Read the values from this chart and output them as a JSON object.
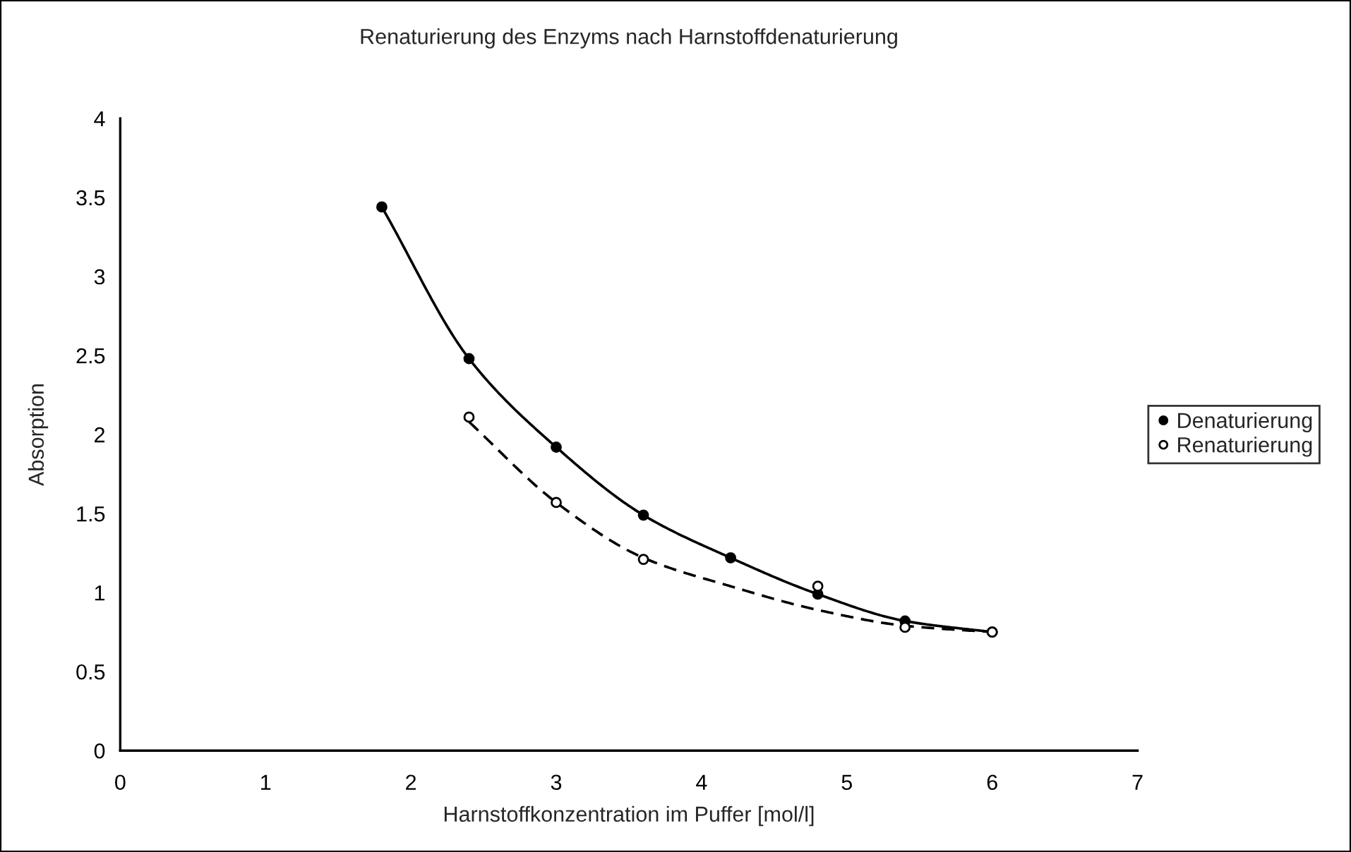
{
  "chart_data": {
    "type": "line",
    "title": "Renaturierung des Enzyms nach Harnstoffdenaturierung",
    "xlabel": "Harnstoffkonzentration im Puffer [mol/l]",
    "ylabel": "Absorption",
    "series": [
      {
        "name": "Denaturierung",
        "color": "#000000",
        "line_style": "solid",
        "x": [
          1.8,
          2.4,
          3,
          3.6,
          4.2,
          4.8,
          5.4,
          6
        ],
        "values": [
          3.44,
          2.48,
          1.92,
          1.49,
          1.22,
          0.99,
          0.82,
          0.75
        ]
      },
      {
        "name": "Renaturierung",
        "type": "scatter",
        "color": "#ffffff",
        "x": [
          2.4,
          3,
          3.6,
          4.8,
          5.4,
          6
        ],
        "values": [
          2.11,
          1.57,
          1.21,
          1.04,
          0.78,
          0.75
        ]
      },
      {
        "type": "line",
        "color": "#000000",
        "line_style": "dashed",
        "marker": "none",
        "x": [
          2.4,
          3,
          3.6,
          4.2,
          4.8,
          5.4,
          6
        ],
        "values": [
          2.08,
          1.57,
          1.22,
          1.04,
          0.89,
          0.79,
          0.75
        ]
      }
    ],
    "marker": "circle",
    "legend": "right",
    "grid": false,
    "xlim": [
      0,
      7
    ],
    "xticks": [
      0,
      1,
      2,
      3,
      4,
      5,
      6,
      7
    ],
    "ylim": [
      0,
      4
    ],
    "yticks": [
      0,
      0.5,
      1,
      1.5,
      2,
      2.5,
      3,
      3.5,
      4
    ]
  }
}
